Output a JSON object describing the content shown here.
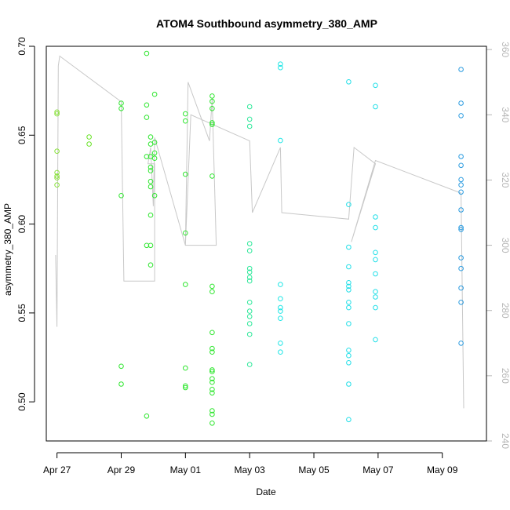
{
  "chart_data": {
    "type": "scatter",
    "title": "ATOM4 Southbound asymmetry_380_AMP",
    "xlabel": "Date",
    "ylabel": "asymmetry_380_AMP",
    "x_ticks": [
      "Apr 27",
      "Apr 29",
      "May 01",
      "May 03",
      "May 05",
      "May 07",
      "May 09"
    ],
    "xlim": [
      "2024-04-26T16:00",
      "2024-05-10T09:00"
    ],
    "ylim": [
      0.478,
      0.7
    ],
    "y_ticks": [
      0.5,
      0.55,
      0.6,
      0.65,
      0.7
    ],
    "y2lim": [
      240,
      361
    ],
    "y2_ticks": [
      240,
      260,
      280,
      300,
      320,
      340,
      360
    ],
    "grid": false,
    "series": [
      {
        "values": [
          [
            "2024-04-27T00:00",
            0.663
          ],
          [
            "2024-04-27T00:00",
            0.662
          ],
          [
            "2024-04-27T00:00",
            0.641
          ],
          [
            "2024-04-27T00:00",
            0.629
          ],
          [
            "2024-04-27T00:00",
            0.627
          ],
          [
            "2024-04-27T00:00",
            0.626
          ],
          [
            "2024-04-27T00:00",
            0.622
          ],
          [
            "2024-04-28T00:00",
            0.649
          ],
          [
            "2024-04-28T00:00",
            0.645
          ],
          [
            "2024-04-29T00:00",
            0.668
          ],
          [
            "2024-04-29T00:00",
            0.665
          ],
          [
            "2024-04-29T00:00",
            0.616
          ],
          [
            "2024-04-29T00:00",
            0.52
          ],
          [
            "2024-04-29T00:00",
            0.51
          ],
          [
            "2024-04-29T19:00",
            0.696
          ],
          [
            "2024-04-29T19:00",
            0.667
          ],
          [
            "2024-04-29T19:00",
            0.66
          ],
          [
            "2024-04-29T19:00",
            0.638
          ],
          [
            "2024-04-29T19:00",
            0.588
          ],
          [
            "2024-04-29T19:00",
            0.492
          ],
          [
            "2024-04-29T22:00",
            0.649
          ],
          [
            "2024-04-29T22:00",
            0.645
          ],
          [
            "2024-04-29T22:00",
            0.638
          ],
          [
            "2024-04-29T22:00",
            0.632
          ],
          [
            "2024-04-29T22:00",
            0.63
          ],
          [
            "2024-04-29T22:00",
            0.624
          ],
          [
            "2024-04-29T22:00",
            0.621
          ],
          [
            "2024-04-29T22:00",
            0.605
          ],
          [
            "2024-04-29T22:00",
            0.588
          ],
          [
            "2024-04-29T22:00",
            0.577
          ],
          [
            "2024-04-30T01:00",
            0.673
          ],
          [
            "2024-04-30T01:00",
            0.646
          ],
          [
            "2024-04-30T01:00",
            0.64
          ],
          [
            "2024-04-30T01:00",
            0.637
          ],
          [
            "2024-04-30T01:00",
            0.616
          ],
          [
            "2024-05-01T00:00",
            0.662
          ],
          [
            "2024-05-01T00:00",
            0.658
          ],
          [
            "2024-05-01T00:00",
            0.628
          ],
          [
            "2024-05-01T00:00",
            0.595
          ],
          [
            "2024-05-01T00:00",
            0.566
          ],
          [
            "2024-05-01T00:00",
            0.519
          ],
          [
            "2024-05-01T00:00",
            0.509
          ],
          [
            "2024-05-01T00:00",
            0.508
          ],
          [
            "2024-05-01T20:00",
            0.672
          ],
          [
            "2024-05-01T20:00",
            0.669
          ],
          [
            "2024-05-01T20:00",
            0.665
          ],
          [
            "2024-05-01T20:00",
            0.657
          ],
          [
            "2024-05-01T20:00",
            0.656
          ],
          [
            "2024-05-01T20:00",
            0.627
          ],
          [
            "2024-05-01T20:00",
            0.565
          ],
          [
            "2024-05-01T20:00",
            0.562
          ],
          [
            "2024-05-01T20:00",
            0.539
          ],
          [
            "2024-05-01T20:00",
            0.53
          ],
          [
            "2024-05-01T20:00",
            0.528
          ],
          [
            "2024-05-01T20:00",
            0.518
          ],
          [
            "2024-05-01T20:00",
            0.517
          ],
          [
            "2024-05-01T20:00",
            0.513
          ],
          [
            "2024-05-01T20:00",
            0.511
          ],
          [
            "2024-05-01T20:00",
            0.507
          ],
          [
            "2024-05-01T20:00",
            0.505
          ],
          [
            "2024-05-01T20:00",
            0.495
          ],
          [
            "2024-05-01T20:00",
            0.493
          ],
          [
            "2024-05-01T20:00",
            0.488
          ]
        ]
      },
      {
        "values": [
          [
            "2024-05-03T00:00",
            0.666
          ],
          [
            "2024-05-03T00:00",
            0.659
          ],
          [
            "2024-05-03T00:00",
            0.655
          ],
          [
            "2024-05-03T00:00",
            0.589
          ],
          [
            "2024-05-03T00:00",
            0.585
          ],
          [
            "2024-05-03T00:00",
            0.575
          ],
          [
            "2024-05-03T00:00",
            0.573
          ],
          [
            "2024-05-03T00:00",
            0.57
          ],
          [
            "2024-05-03T00:00",
            0.568
          ],
          [
            "2024-05-03T00:00",
            0.556
          ],
          [
            "2024-05-03T00:00",
            0.551
          ],
          [
            "2024-05-03T00:00",
            0.548
          ],
          [
            "2024-05-03T00:00",
            0.544
          ],
          [
            "2024-05-03T00:00",
            0.538
          ],
          [
            "2024-05-03T00:00",
            0.521
          ],
          [
            "2024-05-03T23:00",
            0.69
          ],
          [
            "2024-05-03T23:00",
            0.688
          ],
          [
            "2024-05-03T23:00",
            0.647
          ],
          [
            "2024-05-03T23:00",
            0.566
          ],
          [
            "2024-05-03T23:00",
            0.558
          ],
          [
            "2024-05-03T23:00",
            0.553
          ],
          [
            "2024-05-03T23:00",
            0.551
          ],
          [
            "2024-05-03T23:00",
            0.547
          ],
          [
            "2024-05-03T23:00",
            0.533
          ],
          [
            "2024-05-03T23:00",
            0.528
          ],
          [
            "2024-05-06T02:00",
            0.68
          ],
          [
            "2024-05-06T02:00",
            0.611
          ],
          [
            "2024-05-06T02:00",
            0.587
          ],
          [
            "2024-05-06T02:00",
            0.576
          ],
          [
            "2024-05-06T02:00",
            0.567
          ],
          [
            "2024-05-06T02:00",
            0.565
          ],
          [
            "2024-05-06T02:00",
            0.563
          ],
          [
            "2024-05-06T02:00",
            0.556
          ],
          [
            "2024-05-06T02:00",
            0.553
          ],
          [
            "2024-05-06T02:00",
            0.544
          ],
          [
            "2024-05-06T02:00",
            0.529
          ],
          [
            "2024-05-06T02:00",
            0.526
          ],
          [
            "2024-05-06T02:00",
            0.522
          ],
          [
            "2024-05-06T02:00",
            0.51
          ],
          [
            "2024-05-06T02:00",
            0.49
          ],
          [
            "2024-05-06T22:00",
            0.678
          ],
          [
            "2024-05-06T22:00",
            0.666
          ],
          [
            "2024-05-06T22:00",
            0.604
          ],
          [
            "2024-05-06T22:00",
            0.598
          ],
          [
            "2024-05-06T22:00",
            0.584
          ],
          [
            "2024-05-06T22:00",
            0.58
          ],
          [
            "2024-05-06T22:00",
            0.572
          ],
          [
            "2024-05-06T22:00",
            0.562
          ],
          [
            "2024-05-06T22:00",
            0.559
          ],
          [
            "2024-05-06T22:00",
            0.553
          ],
          [
            "2024-05-06T22:00",
            0.535
          ]
        ]
      },
      {
        "values": [
          [
            "2024-05-09T14:00",
            0.687
          ],
          [
            "2024-05-09T14:00",
            0.668
          ],
          [
            "2024-05-09T14:00",
            0.661
          ],
          [
            "2024-05-09T14:00",
            0.638
          ],
          [
            "2024-05-09T14:00",
            0.633
          ],
          [
            "2024-05-09T14:00",
            0.625
          ],
          [
            "2024-05-09T14:00",
            0.622
          ],
          [
            "2024-05-09T14:00",
            0.618
          ],
          [
            "2024-05-09T14:00",
            0.608
          ],
          [
            "2024-05-09T14:00",
            0.598
          ],
          [
            "2024-05-09T14:00",
            0.597
          ],
          [
            "2024-05-09T14:00",
            0.581
          ],
          [
            "2024-05-09T14:00",
            0.575
          ],
          [
            "2024-05-09T14:00",
            0.564
          ],
          [
            "2024-05-09T14:00",
            0.556
          ],
          [
            "2024-05-09T14:00",
            0.533
          ]
        ]
      }
    ],
    "line_series": {
      "axis": "right",
      "color": "#c8c8c8",
      "values": [
        [
          "2024-04-26T23:00",
          297
        ],
        [
          "2024-04-27T00:00",
          275
        ],
        [
          "2024-04-27T01:00",
          355
        ],
        [
          "2024-04-27T02:00",
          358
        ],
        [
          "2024-04-29T00:00",
          344
        ],
        [
          "2024-04-29T02:00",
          289
        ],
        [
          "2024-04-30T01:00",
          289
        ],
        [
          "2024-04-30T01:00",
          325
        ],
        [
          "2024-04-29T20:00",
          325
        ],
        [
          "2024-04-29T22:00",
          330
        ],
        [
          "2024-04-30T00:00",
          312
        ],
        [
          "2024-04-30T01:00",
          333
        ],
        [
          "2024-05-01T00:00",
          300
        ],
        [
          "2024-05-01T02:00",
          350
        ],
        [
          "2024-05-01T18:00",
          332
        ],
        [
          "2024-05-01T20:00",
          345
        ],
        [
          "2024-05-01T23:00",
          300
        ],
        [
          "2024-05-01T00:00",
          300
        ],
        [
          "2024-05-01T04:00",
          340
        ],
        [
          "2024-05-03T00:00",
          332
        ],
        [
          "2024-05-03T02:00",
          310
        ],
        [
          "2024-05-03T23:00",
          330
        ],
        [
          "2024-05-04T00:00",
          310
        ],
        [
          "2024-05-06T02:00",
          308
        ],
        [
          "2024-05-06T06:00",
          330
        ],
        [
          "2024-05-06T22:00",
          325
        ],
        [
          "2024-05-06T04:00",
          301
        ],
        [
          "2024-05-06T22:00",
          326
        ],
        [
          "2024-05-09T14:00",
          316
        ],
        [
          "2024-05-09T16:00",
          250
        ]
      ]
    }
  }
}
